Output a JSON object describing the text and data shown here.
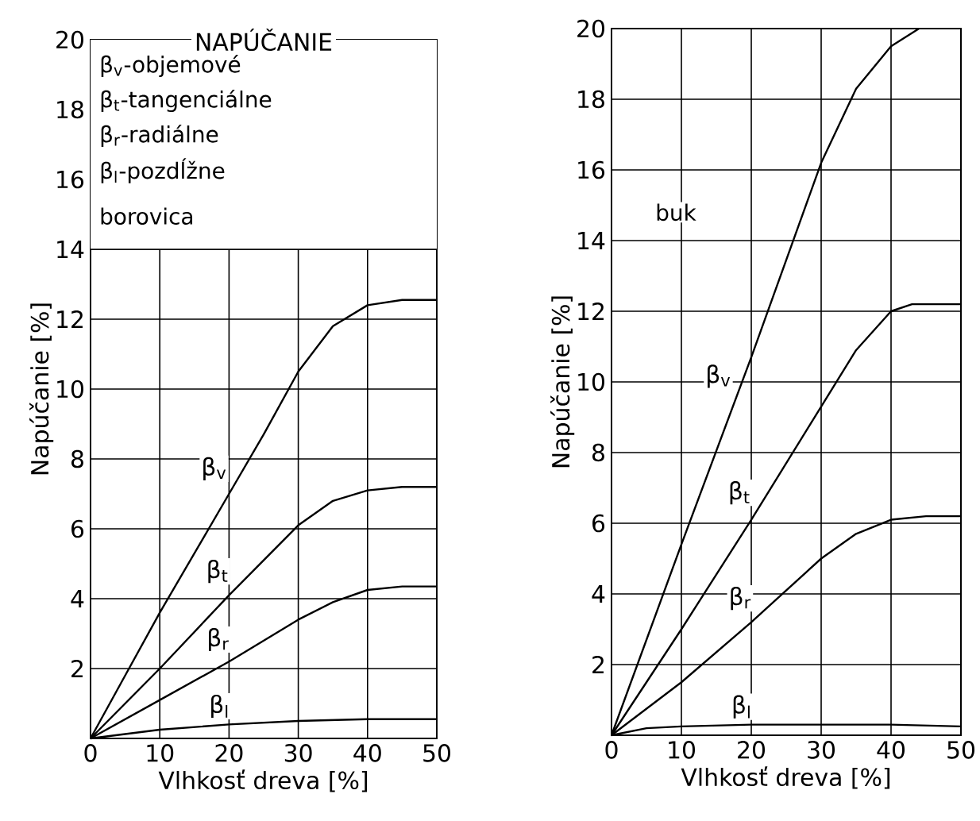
{
  "chart_data": [
    {
      "type": "line",
      "legend_title": "NAPÚČANIE",
      "xlabel": "Vlhkosť dreva [%]",
      "ylabel": "Napúčanie [%]",
      "annotations": [
        "β$_{v}$-objemové",
        "β$_{t}$-tangenciálne",
        "β$_{r}$-radiálne",
        "β$_{l}$-pozdĺžne",
        "borovica"
      ],
      "xlim": [
        0,
        50
      ],
      "ylim": [
        0,
        20
      ],
      "xticks": [
        0,
        10,
        20,
        30,
        40,
        50
      ],
      "yticks": [
        2,
        4,
        6,
        8,
        10,
        12,
        14,
        16,
        18,
        20
      ],
      "grid": true,
      "marker": "none",
      "series": [
        {
          "name": "β$_{v}$",
          "color": "#000000",
          "x": [
            0,
            5,
            10,
            20,
            25,
            30,
            35,
            40,
            45,
            50
          ],
          "values": [
            0,
            1.8,
            3.6,
            7,
            8.7,
            10.5,
            11.8,
            12.4,
            12.55,
            12.55
          ]
        },
        {
          "name": "β$_{t}$",
          "color": "#000000",
          "x": [
            0,
            10,
            20,
            30,
            35,
            40,
            45,
            50
          ],
          "values": [
            0,
            2,
            4.1,
            6.1,
            6.8,
            7.1,
            7.2,
            7.2
          ]
        },
        {
          "name": "β$_{r}$",
          "color": "#000000",
          "x": [
            0,
            10,
            20,
            30,
            35,
            40,
            45,
            50
          ],
          "values": [
            0,
            1.1,
            2.2,
            3.4,
            3.9,
            4.25,
            4.35,
            4.35
          ]
        },
        {
          "name": "β$_{l}$",
          "color": "#000000",
          "x": [
            0,
            10,
            20,
            30,
            40,
            50
          ],
          "values": [
            0,
            0.25,
            0.4,
            0.5,
            0.55,
            0.55
          ]
        }
      ]
    },
    {
      "type": "line",
      "xlabel": "Vlhkosť dreva [%]",
      "ylabel": "Napúčanie [%]",
      "annotations": [
        "buk"
      ],
      "xlim": [
        0,
        50
      ],
      "ylim": [
        0,
        20
      ],
      "xticks": [
        0,
        10,
        20,
        30,
        40,
        50
      ],
      "yticks": [
        2,
        4,
        6,
        8,
        10,
        12,
        14,
        16,
        18,
        20
      ],
      "grid": true,
      "marker": "none",
      "series": [
        {
          "name": "β$_{v}$",
          "color": "#000000",
          "x": [
            0,
            10,
            20,
            30,
            35,
            40,
            44
          ],
          "values": [
            0,
            5.4,
            10.7,
            16.2,
            18.3,
            19.5,
            20
          ]
        },
        {
          "name": "β$_{t}$",
          "color": "#000000",
          "x": [
            0,
            10,
            20,
            30,
            35,
            40,
            43,
            50
          ],
          "values": [
            0,
            3,
            6.1,
            9.3,
            10.9,
            12,
            12.2,
            12.2
          ]
        },
        {
          "name": "β$_{r}$",
          "color": "#000000",
          "x": [
            0,
            10,
            20,
            30,
            35,
            40,
            45,
            50
          ],
          "values": [
            0,
            1.5,
            3.2,
            5,
            5.7,
            6.1,
            6.2,
            6.2
          ]
        },
        {
          "name": "β$_{l}$",
          "color": "#000000",
          "x": [
            0,
            5,
            10,
            20,
            30,
            40,
            50
          ],
          "values": [
            0,
            0.2,
            0.25,
            0.3,
            0.3,
            0.3,
            0.25
          ]
        }
      ]
    }
  ]
}
